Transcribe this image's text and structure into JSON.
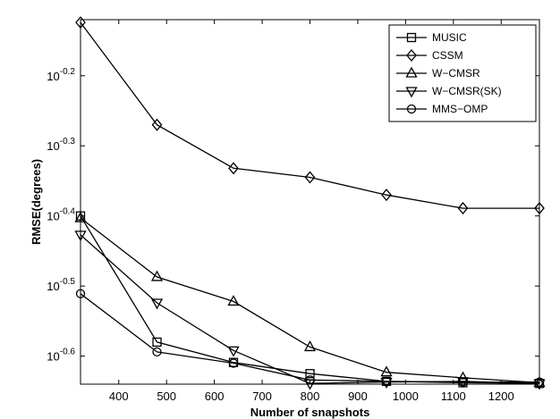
{
  "chart_data": {
    "type": "line",
    "title": "",
    "xlabel": "Number of snapshots",
    "ylabel": "RMSE(degrees)",
    "x_scale": "linear",
    "y_scale": "log10",
    "xlim": [
      320,
      1280
    ],
    "ylim_log10": [
      -0.64,
      -0.12
    ],
    "x_ticks": [
      400,
      500,
      600,
      700,
      800,
      900,
      1000,
      1100,
      1200
    ],
    "y_ticks": [
      {
        "base": "10",
        "exp": "-0.6",
        "value_log10": -0.6
      },
      {
        "base": "10",
        "exp": "-0.5",
        "value_log10": -0.5
      },
      {
        "base": "10",
        "exp": "-0.4",
        "value_log10": -0.4
      },
      {
        "base": "10",
        "exp": "-0.3",
        "value_log10": -0.3
      },
      {
        "base": "10",
        "exp": "-0.2",
        "value_log10": -0.2
      }
    ],
    "grid": false,
    "legend_position": "top-right",
    "x": [
      320,
      480,
      640,
      800,
      960,
      1120,
      1280
    ],
    "series": [
      {
        "name": "MUSIC",
        "marker": "square",
        "log10_values": [
          -0.4,
          -0.58,
          -0.609,
          -0.625,
          -0.636,
          -0.638,
          -0.639
        ]
      },
      {
        "name": "CSSM",
        "marker": "diamond",
        "log10_values": [
          -0.124,
          -0.27,
          -0.332,
          -0.345,
          -0.37,
          -0.389,
          -0.389
        ]
      },
      {
        "name": "W−CMSR",
        "marker": "triangle-up",
        "log10_values": [
          -0.403,
          -0.487,
          -0.522,
          -0.587,
          -0.623,
          -0.631,
          -0.638
        ]
      },
      {
        "name": "W−CMSR(SK)",
        "marker": "triangle-down",
        "log10_values": [
          -0.427,
          -0.524,
          -0.592,
          -0.639,
          -0.637,
          -0.636,
          -0.639
        ]
      },
      {
        "name": "MMS−OMP",
        "marker": "circle",
        "log10_values": [
          -0.511,
          -0.594,
          -0.61,
          -0.634,
          -0.636,
          -0.637,
          -0.637
        ]
      }
    ]
  }
}
